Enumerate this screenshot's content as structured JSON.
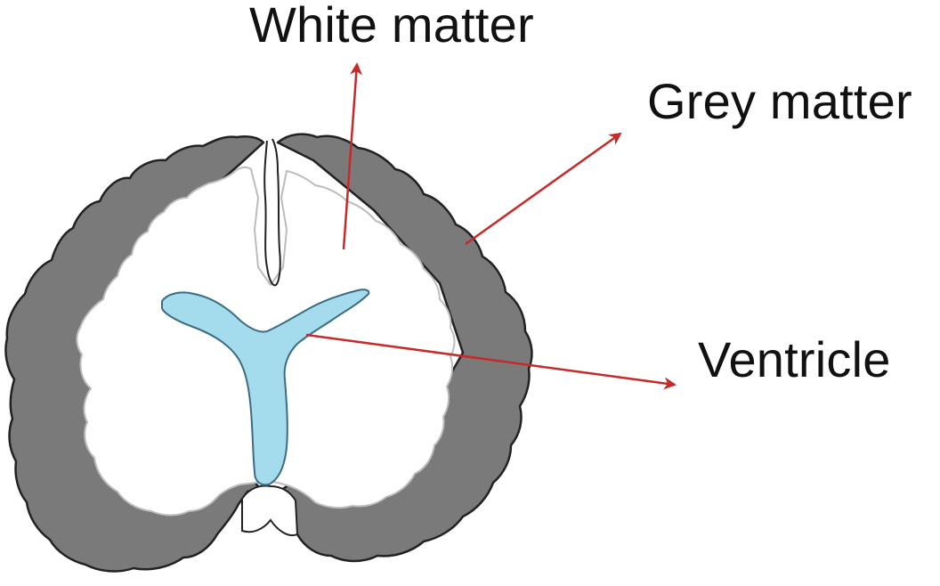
{
  "labels": {
    "white_matter": "White matter",
    "grey_matter": "Grey matter",
    "ventricle": "Ventricle"
  },
  "colors": {
    "grey_matter": "#7a7a7a",
    "white_matter": "#ffffff",
    "ventricle": "#a4dcee",
    "outline": "#222222",
    "arrow": "#c62a2a"
  }
}
